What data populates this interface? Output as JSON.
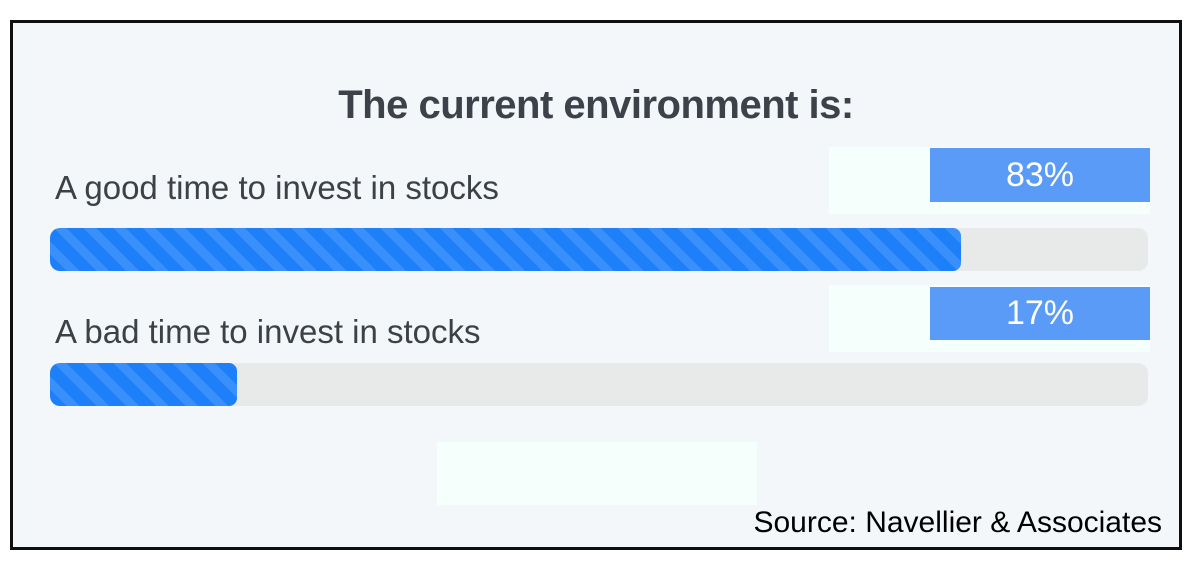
{
  "chart_data": {
    "type": "bar",
    "orientation": "horizontal",
    "title": "The current environment is:",
    "categories": [
      "A good time to invest in stocks",
      "A bad time to invest in stocks"
    ],
    "values": [
      83,
      17
    ],
    "value_labels": [
      "83%",
      "17%"
    ],
    "xlim": [
      0,
      100
    ],
    "grid": false,
    "legend": false,
    "source": "Source: Navellier & Associates"
  },
  "colors": {
    "background": "#f3f7fa",
    "bar_fill": "#1e80f8",
    "bar_stripe": "#3a90fa",
    "track": "#e8e9e9",
    "badge": "#5a9bf8",
    "badge_text": "#ffffff",
    "highlight": "#f5fffb"
  }
}
